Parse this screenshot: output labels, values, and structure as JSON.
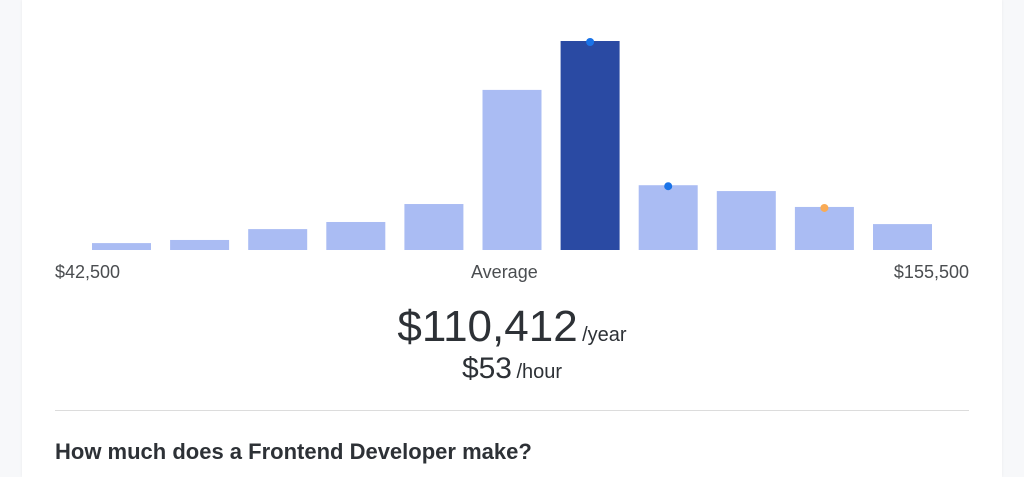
{
  "chart_data": {
    "type": "bar",
    "title": "",
    "xlabel": "",
    "ylabel": "",
    "values": [
      3.3,
      4.8,
      10,
      13.4,
      22,
      76.6,
      100,
      31,
      28.2,
      20.6,
      12.4
    ],
    "highlighted_index": 6,
    "markers": [
      {
        "bar_index": 6,
        "color": "#1a73e8"
      },
      {
        "bar_index": 7,
        "color": "#1a73e8"
      },
      {
        "bar_index": 9,
        "color": "#f9ab55"
      }
    ],
    "tick_labels": {
      "min": "$42,500",
      "center": "Average",
      "max": "$155,500"
    },
    "colors": {
      "bar": "#aabcf3",
      "highlight": "#2a4aa3"
    },
    "grid": false
  },
  "salary": {
    "yearly": "$110,412",
    "yearly_unit": "/year",
    "hourly": "$53",
    "hourly_unit": "/hour"
  },
  "section": {
    "heading": "How much does a Frontend Developer make?"
  }
}
